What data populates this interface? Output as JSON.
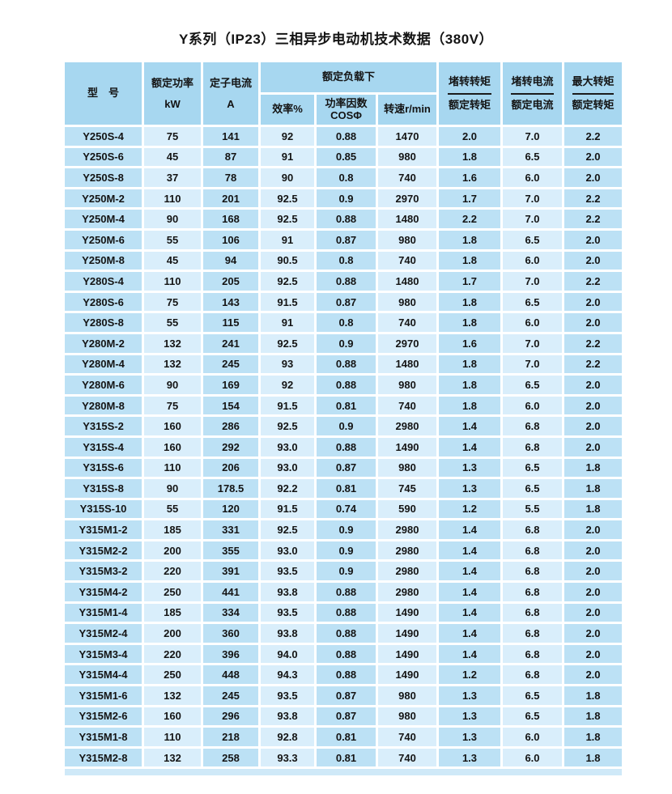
{
  "page": {
    "title": "Y系列（IP23）三相异步电动机技术数据（380V）"
  },
  "colors": {
    "header_bg": "#a7d7f0",
    "column_medium": "#bce1f5",
    "column_light": "#d9eefb",
    "footer_strip": "#cfe9f8",
    "text": "#141414",
    "page_bg": "#ffffff"
  },
  "table": {
    "header": {
      "model": "型　号",
      "rated_power_line1": "额定功率",
      "rated_power_line2": "kW",
      "stator_current_line1": "定子电流",
      "stator_current_line2": "A",
      "rated_load_group": "额定负载下",
      "efficiency": "效率%",
      "power_factor_line1": "功率因数",
      "power_factor_line2": "COSΦ",
      "speed": "转速r/min",
      "locked_torque_num": "堵转转矩",
      "locked_torque_den": "额定转矩",
      "locked_current_num": "堵转电流",
      "locked_current_den": "额定电流",
      "max_torque_num": "最大转矩",
      "max_torque_den": "额定转矩"
    },
    "rows": [
      [
        "Y250S-4",
        "75",
        "141",
        "92",
        "0.88",
        "1470",
        "2.0",
        "7.0",
        "2.2"
      ],
      [
        "Y250S-6",
        "45",
        "87",
        "91",
        "0.85",
        "980",
        "1.8",
        "6.5",
        "2.0"
      ],
      [
        "Y250S-8",
        "37",
        "78",
        "90",
        "0.8",
        "740",
        "1.6",
        "6.0",
        "2.0"
      ],
      [
        "Y250M-2",
        "110",
        "201",
        "92.5",
        "0.9",
        "2970",
        "1.7",
        "7.0",
        "2.2"
      ],
      [
        "Y250M-4",
        "90",
        "168",
        "92.5",
        "0.88",
        "1480",
        "2.2",
        "7.0",
        "2.2"
      ],
      [
        "Y250M-6",
        "55",
        "106",
        "91",
        "0.87",
        "980",
        "1.8",
        "6.5",
        "2.0"
      ],
      [
        "Y250M-8",
        "45",
        "94",
        "90.5",
        "0.8",
        "740",
        "1.8",
        "6.0",
        "2.0"
      ],
      [
        "Y280S-4",
        "110",
        "205",
        "92.5",
        "0.88",
        "1480",
        "1.7",
        "7.0",
        "2.2"
      ],
      [
        "Y280S-6",
        "75",
        "143",
        "91.5",
        "0.87",
        "980",
        "1.8",
        "6.5",
        "2.0"
      ],
      [
        "Y280S-8",
        "55",
        "115",
        "91",
        "0.8",
        "740",
        "1.8",
        "6.0",
        "2.0"
      ],
      [
        "Y280M-2",
        "132",
        "241",
        "92.5",
        "0.9",
        "2970",
        "1.6",
        "7.0",
        "2.2"
      ],
      [
        "Y280M-4",
        "132",
        "245",
        "93",
        "0.88",
        "1480",
        "1.8",
        "7.0",
        "2.2"
      ],
      [
        "Y280M-6",
        "90",
        "169",
        "92",
        "0.88",
        "980",
        "1.8",
        "6.5",
        "2.0"
      ],
      [
        "Y280M-8",
        "75",
        "154",
        "91.5",
        "0.81",
        "740",
        "1.8",
        "6.0",
        "2.0"
      ],
      [
        "Y315S-2",
        "160",
        "286",
        "92.5",
        "0.9",
        "2980",
        "1.4",
        "6.8",
        "2.0"
      ],
      [
        "Y315S-4",
        "160",
        "292",
        "93.0",
        "0.88",
        "1490",
        "1.4",
        "6.8",
        "2.0"
      ],
      [
        "Y315S-6",
        "110",
        "206",
        "93.0",
        "0.87",
        "980",
        "1.3",
        "6.5",
        "1.8"
      ],
      [
        "Y315S-8",
        "90",
        "178.5",
        "92.2",
        "0.81",
        "745",
        "1.3",
        "6.5",
        "1.8"
      ],
      [
        "Y315S-10",
        "55",
        "120",
        "91.5",
        "0.74",
        "590",
        "1.2",
        "5.5",
        "1.8"
      ],
      [
        "Y315M1-2",
        "185",
        "331",
        "92.5",
        "0.9",
        "2980",
        "1.4",
        "6.8",
        "2.0"
      ],
      [
        "Y315M2-2",
        "200",
        "355",
        "93.0",
        "0.9",
        "2980",
        "1.4",
        "6.8",
        "2.0"
      ],
      [
        "Y315M3-2",
        "220",
        "391",
        "93.5",
        "0.9",
        "2980",
        "1.4",
        "6.8",
        "2.0"
      ],
      [
        "Y315M4-2",
        "250",
        "441",
        "93.8",
        "0.88",
        "2980",
        "1.4",
        "6.8",
        "2.0"
      ],
      [
        "Y315M1-4",
        "185",
        "334",
        "93.5",
        "0.88",
        "1490",
        "1.4",
        "6.8",
        "2.0"
      ],
      [
        "Y315M2-4",
        "200",
        "360",
        "93.8",
        "0.88",
        "1490",
        "1.4",
        "6.8",
        "2.0"
      ],
      [
        "Y315M3-4",
        "220",
        "396",
        "94.0",
        "0.88",
        "1490",
        "1.4",
        "6.8",
        "2.0"
      ],
      [
        "Y315M4-4",
        "250",
        "448",
        "94.3",
        "0.88",
        "1490",
        "1.2",
        "6.8",
        "2.0"
      ],
      [
        "Y315M1-6",
        "132",
        "245",
        "93.5",
        "0.87",
        "980",
        "1.3",
        "6.5",
        "1.8"
      ],
      [
        "Y315M2-6",
        "160",
        "296",
        "93.8",
        "0.87",
        "980",
        "1.3",
        "6.5",
        "1.8"
      ],
      [
        "Y315M1-8",
        "110",
        "218",
        "92.8",
        "0.81",
        "740",
        "1.3",
        "6.0",
        "1.8"
      ],
      [
        "Y315M2-8",
        "132",
        "258",
        "93.3",
        "0.81",
        "740",
        "1.3",
        "6.0",
        "1.8"
      ]
    ]
  }
}
